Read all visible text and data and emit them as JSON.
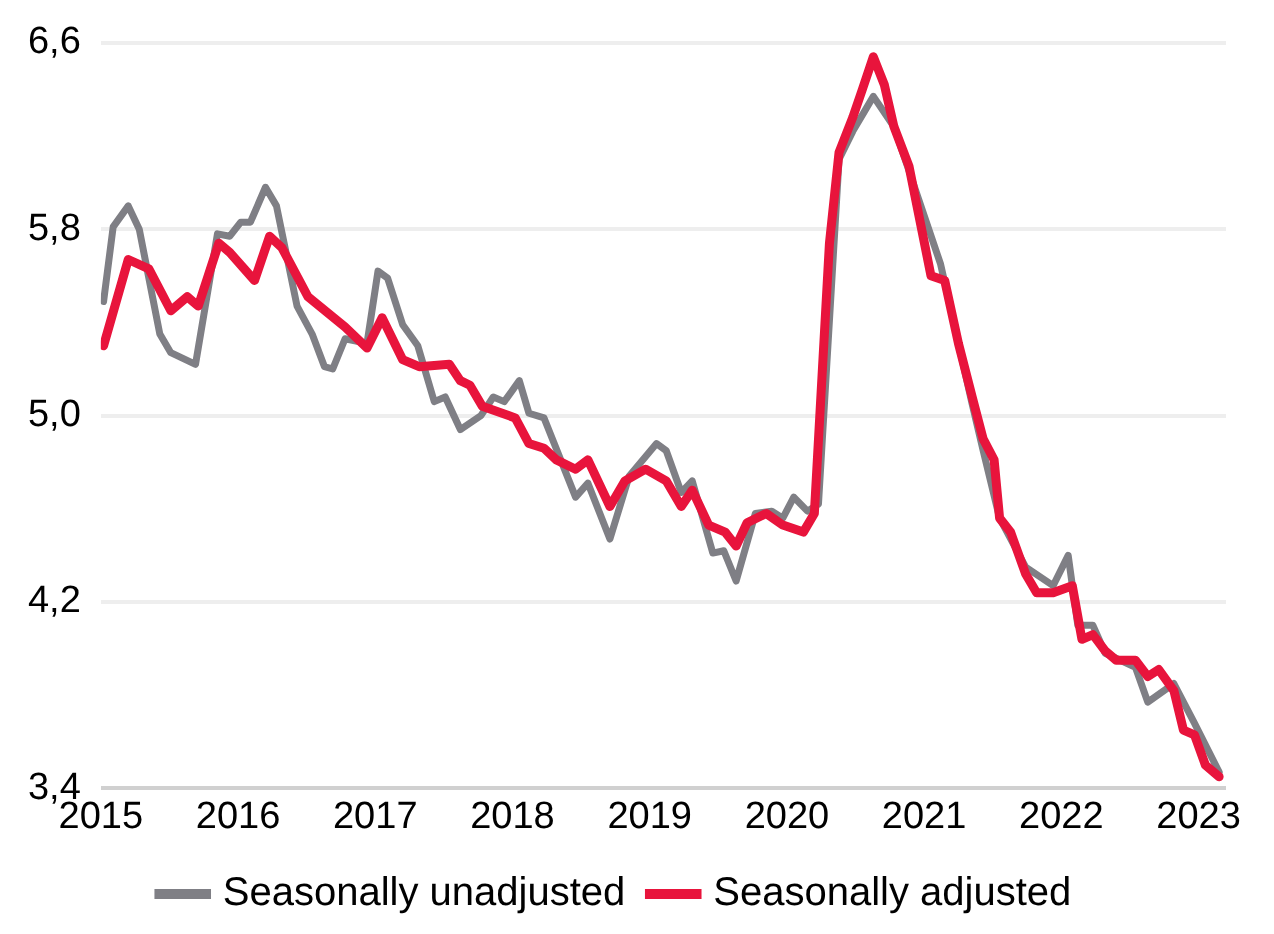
{
  "chart_data": {
    "type": "line",
    "xlim": [
      2015,
      2023.2
    ],
    "xticks": [
      2015,
      2016,
      2017,
      2018,
      2019,
      2020,
      2021,
      2022,
      2023
    ],
    "ylim": [
      3.4,
      6.6
    ],
    "yticks": [
      {
        "value": 3.4,
        "label": "3,4"
      },
      {
        "value": 4.2,
        "label": "4,2"
      },
      {
        "value": 5.0,
        "label": "5,0"
      },
      {
        "value": 5.8,
        "label": "5,8"
      },
      {
        "value": 6.6,
        "label": "6,6"
      }
    ],
    "grid": "y",
    "legend": "bottom",
    "marker": "none",
    "line_style": "solid",
    "series": [
      {
        "name": "Seasonally unadjusted",
        "color": "#7f7f85",
        "x": [
          2015.02,
          2015.09,
          2015.2,
          2015.28,
          2015.43,
          2015.51,
          2015.69,
          2015.85,
          2015.94,
          2016.02,
          2016.09,
          2016.2,
          2016.28,
          2016.43,
          2016.54,
          2016.63,
          2016.69,
          2016.78,
          2016.94,
          2017.02,
          2017.09,
          2017.2,
          2017.31,
          2017.43,
          2017.51,
          2017.62,
          2017.77,
          2017.86,
          2017.94,
          2018.05,
          2018.12,
          2018.23,
          2018.46,
          2018.55,
          2018.71,
          2018.85,
          2019.05,
          2019.12,
          2019.23,
          2019.31,
          2019.46,
          2019.54,
          2019.63,
          2019.77,
          2019.89,
          2019.97,
          2020.05,
          2020.15,
          2020.23,
          2020.31,
          2020.38,
          2020.48,
          2020.63,
          2020.78,
          2020.89,
          2021.12,
          2021.25,
          2021.35,
          2021.43,
          2021.55,
          2021.74,
          2021.94,
          2022.05,
          2022.12,
          2022.23,
          2022.32,
          2022.54,
          2022.63,
          2022.82,
          2022.97,
          2023.15
        ],
        "values": [
          5.49,
          5.81,
          5.9,
          5.8,
          5.35,
          5.27,
          5.22,
          5.78,
          5.77,
          5.83,
          5.83,
          5.98,
          5.9,
          5.47,
          5.35,
          5.21,
          5.2,
          5.33,
          5.31,
          5.62,
          5.59,
          5.39,
          5.3,
          5.06,
          5.08,
          4.94,
          5.0,
          5.08,
          5.06,
          5.15,
          5.01,
          4.99,
          4.65,
          4.71,
          4.47,
          4.74,
          4.88,
          4.85,
          4.67,
          4.72,
          4.41,
          4.42,
          4.29,
          4.58,
          4.59,
          4.56,
          4.65,
          4.59,
          4.62,
          null,
          6.1,
          6.22,
          6.37,
          6.24,
          6.05,
          5.65,
          null,
          5.05,
          4.85,
          4.56,
          4.35,
          4.27,
          4.4,
          4.1,
          4.1,
          3.98,
          3.92,
          3.77,
          3.85,
          3.68,
          3.47
        ]
      },
      {
        "name": "Seasonally adjusted",
        "color": "#e8143c",
        "x": [
          2015.02,
          2015.2,
          2015.35,
          2015.51,
          2015.63,
          2015.71,
          2015.86,
          2015.94,
          2016.12,
          2016.23,
          2016.32,
          2016.51,
          2016.78,
          2016.94,
          2017.05,
          2017.2,
          2017.32,
          2017.54,
          2017.62,
          2017.69,
          2017.78,
          2018.02,
          2018.12,
          2018.23,
          2018.32,
          2018.46,
          2018.55,
          2018.71,
          2018.82,
          2018.97,
          2019.12,
          2019.23,
          2019.31,
          2019.43,
          2019.55,
          2019.63,
          2019.71,
          2019.85,
          2019.97,
          2020.12,
          2020.2,
          2020.31,
          2020.38,
          2020.48,
          2020.55,
          2020.63,
          2020.71,
          2020.78,
          2020.89,
          2021.05,
          2021.15,
          2021.25,
          2021.35,
          2021.43,
          2021.51,
          2021.55,
          2021.63,
          2021.74,
          2021.82,
          2021.94,
          2022.08,
          2022.15,
          2022.23,
          2022.32,
          2022.4,
          2022.54,
          2022.63,
          2022.71,
          2022.82,
          2022.89,
          2022.97,
          2023.05,
          2023.15
        ],
        "values": [
          5.3,
          5.67,
          5.63,
          5.45,
          5.51,
          5.47,
          5.74,
          5.7,
          5.58,
          5.77,
          5.72,
          5.51,
          5.38,
          5.29,
          5.42,
          5.24,
          5.21,
          5.22,
          5.15,
          5.13,
          5.04,
          4.99,
          4.88,
          4.86,
          4.81,
          4.77,
          4.81,
          4.61,
          4.72,
          4.77,
          4.72,
          4.61,
          4.68,
          4.53,
          4.5,
          4.44,
          4.54,
          4.58,
          4.53,
          4.5,
          4.58,
          5.74,
          6.13,
          6.28,
          6.4,
          6.54,
          6.42,
          6.24,
          6.07,
          5.6,
          5.58,
          5.31,
          5.08,
          4.9,
          4.81,
          4.56,
          4.5,
          4.32,
          4.24,
          4.24,
          4.27,
          4.04,
          4.06,
          3.99,
          3.95,
          3.95,
          3.88,
          3.91,
          3.82,
          3.65,
          3.63,
          3.5,
          3.45
        ]
      }
    ]
  }
}
